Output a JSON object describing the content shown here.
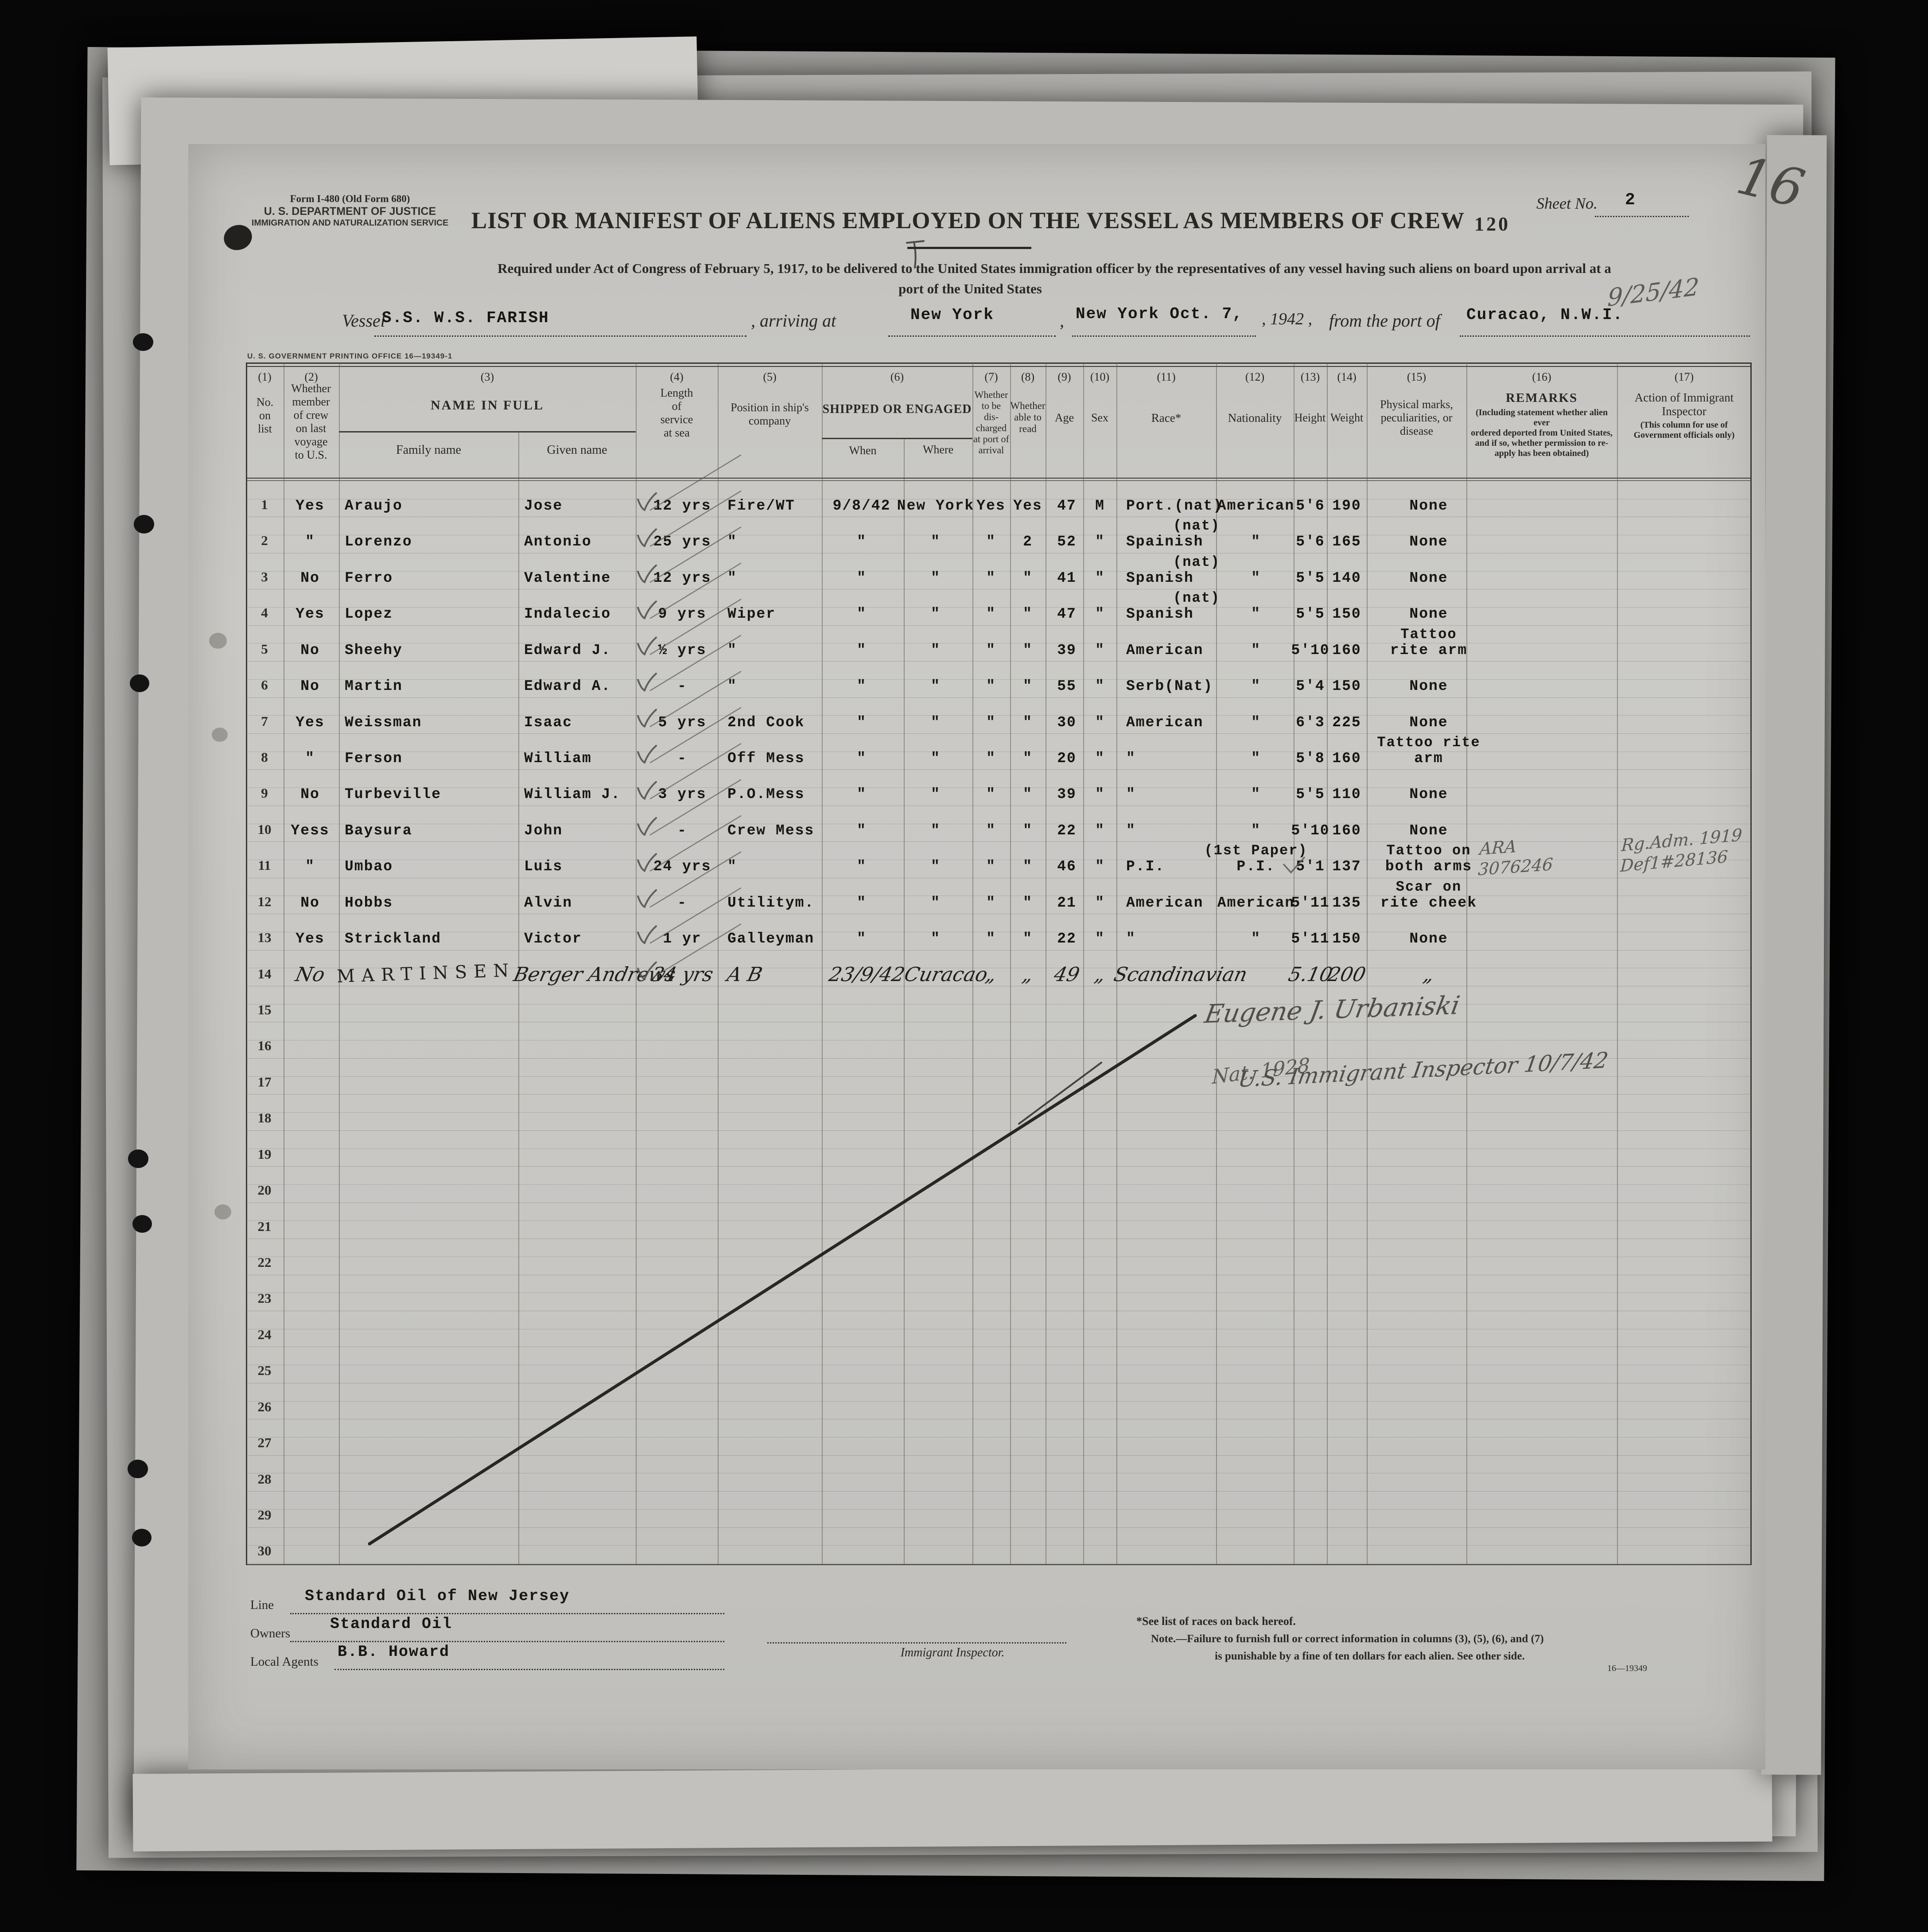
{
  "form": {
    "form_line1": "Form I-480 (Old Form 680)",
    "form_line2": "U. S. DEPARTMENT OF JUSTICE",
    "form_line3": "IMMIGRATION AND NATURALIZATION SERVICE",
    "title": "LIST OR MANIFEST OF ALIENS EMPLOYED ON THE VESSEL AS MEMBERS OF CREW",
    "stamp": "120",
    "sheet_label": "Sheet No.",
    "sheet_value": "2",
    "required_line1": "Required under Act of Congress of February 5, 1917, to be delivered to the United States immigration officer by the representatives of any vessel having such aliens on board upon arrival at a",
    "required_line2": "port of the United States",
    "printing_office": "U. S. GOVERNMENT PRINTING OFFICE   16—19349-1"
  },
  "vessel": {
    "vessel_label": "Vessel",
    "vessel_name": "S.S. W.S. FARISH",
    "arriving_label": ", arriving at",
    "arrival_port": "New York",
    "comma": ",",
    "arrival_city_date": "New York Oct. 7,",
    "year_text": ", 1942 ,",
    "from_label": "from the port of",
    "origin_port": "Curacao, N.W.I."
  },
  "table": {
    "header": {
      "n1": "(1)",
      "c1": "No.\non\nlist",
      "n2": "(2)",
      "c2": "Whether\nmember\nof crew\non last\nvoyage\nto U.S.",
      "n3": "(3)",
      "c3": "NAME IN FULL",
      "c3a": "Family name",
      "c3b": "Given name",
      "n4": "(4)",
      "c4": "Length\nof\nservice\nat sea",
      "n5": "(5)",
      "c5": "Position in ship's\ncompany",
      "n6": "(6)",
      "c6": "SHIPPED OR ENGAGED",
      "c6a": "When",
      "c6b": "Where",
      "n7": "(7)",
      "c7": "Whether\nto be\ndis-\ncharged\nat port of\narrival",
      "n8": "(8)",
      "c8": "Whether\nable to\nread",
      "n9": "(9)",
      "c9": "Age",
      "n10": "(10)",
      "c10": "Sex",
      "n11": "(11)",
      "c11": "Race*",
      "n12": "(12)",
      "c12": "Nationality",
      "n13": "(13)",
      "c13": "Height",
      "n14": "(14)",
      "c14": "Weight",
      "n15": "(15)",
      "c15": "Physical marks,\npeculiarities, or\ndisease",
      "n16": "(16)",
      "c16": "REMARKS",
      "c16sub": "(Including statement whether alien ever\nordered deported from United States,\nand if so, whether permission to re-\napply has been obtained)",
      "n17": "(17)",
      "c17": "Action of Immigrant\nInspector",
      "c17sub": "(This column for use of\nGovernment officials only)"
    },
    "rows": [
      {
        "no": "1",
        "member": "Yes",
        "family": "Araujo",
        "given": "Jose",
        "service": "12 yrs",
        "position": "Fire/WT",
        "when": "9/8/42",
        "where": "New York",
        "disch": "Yes",
        "read": "Yes",
        "age": "47",
        "sex": "M",
        "race": "Port.(nat)",
        "nat": "American",
        "height": "5'6",
        "weight": "190",
        "marks": "None"
      },
      {
        "no": "2",
        "member": "\"",
        "family": "Lorenzo",
        "given": "Antonio",
        "service": "25 yrs",
        "position": "\"",
        "when": "\"",
        "where": "\"",
        "disch": "\"",
        "read": "2",
        "age": "52",
        "sex": "\"",
        "race_pre": "(nat)",
        "race": "Spainish",
        "nat": "\"",
        "height": "5'6",
        "weight": "165",
        "marks": "None"
      },
      {
        "no": "3",
        "member": "No",
        "family": "Ferro",
        "given": "Valentine",
        "service": "12 yrs",
        "position": "\"",
        "when": "\"",
        "where": "\"",
        "disch": "\"",
        "read": "\"",
        "age": "41",
        "sex": "\"",
        "race_pre": "(nat)",
        "race": "Spanish",
        "nat": "\"",
        "height": "5'5",
        "weight": "140",
        "marks": "None"
      },
      {
        "no": "4",
        "member": "Yes",
        "family": "Lopez",
        "given": "Indalecio",
        "service": "9 yrs",
        "position": "Wiper",
        "when": "\"",
        "where": "\"",
        "disch": "\"",
        "read": "\"",
        "age": "47",
        "sex": "\"",
        "race_pre": "(nat)",
        "race": "Spanish",
        "nat": "\"",
        "height": "5'5",
        "weight": "150",
        "marks": "None"
      },
      {
        "no": "5",
        "member": "No",
        "family": "Sheehy",
        "given": "Edward J.",
        "service": "½ yrs",
        "position": "\"",
        "when": "\"",
        "where": "\"",
        "disch": "\"",
        "read": "\"",
        "age": "39",
        "sex": "\"",
        "race": "American",
        "nat": "\"",
        "height": "5'10",
        "weight": "160",
        "marks_pre": "Tattoo",
        "marks": "rite arm"
      },
      {
        "no": "6",
        "member": "No",
        "family": "Martin",
        "given": "Edward A.",
        "service": "-",
        "position": "\"",
        "when": "\"",
        "where": "\"",
        "disch": "\"",
        "read": "\"",
        "age": "55",
        "sex": "\"",
        "race": "Serb(Nat)",
        "nat": "\"",
        "height": "5'4",
        "weight": "150",
        "marks": "None"
      },
      {
        "no": "7",
        "member": "Yes",
        "family": "Weissman",
        "given": "Isaac",
        "service": "5 yrs",
        "position": "2nd Cook",
        "when": "\"",
        "where": "\"",
        "disch": "\"",
        "read": "\"",
        "age": "30",
        "sex": "\"",
        "race": "American",
        "nat": "\"",
        "height": "6'3",
        "weight": "225",
        "marks": "None"
      },
      {
        "no": "8",
        "member": "\"",
        "family": "Ferson",
        "given": "William",
        "service": "-",
        "position": "Off Mess",
        "when": "\"",
        "where": "\"",
        "disch": "\"",
        "read": "\"",
        "age": "20",
        "sex": "\"",
        "race": "\"",
        "nat": "\"",
        "height": "5'8",
        "weight": "160",
        "marks_pre": "Tattoo rite",
        "marks": "arm"
      },
      {
        "no": "9",
        "member": "No",
        "family": "Turbeville",
        "given": "William J.",
        "service": "3 yrs",
        "position": "P.O.Mess",
        "when": "\"",
        "where": "\"",
        "disch": "\"",
        "read": "\"",
        "age": "39",
        "sex": "\"",
        "race": "\"",
        "nat": "\"",
        "height": "5'5",
        "weight": "110",
        "marks": "None"
      },
      {
        "no": "10",
        "member": "Yess",
        "family": "Baysura",
        "given": "John",
        "service": "-",
        "position": "Crew Mess",
        "when": "\"",
        "where": "\"",
        "disch": "\"",
        "read": "\"",
        "age": "22",
        "sex": "\"",
        "race": "\"",
        "nat": "\"",
        "height": "5'10",
        "weight": "160",
        "marks": "None"
      },
      {
        "no": "11",
        "member": "\"",
        "family": "Umbao",
        "given": "Luis",
        "service": "24 yrs",
        "position": "\"",
        "when": "\"",
        "where": "\"",
        "disch": "\"",
        "read": "\"",
        "age": "46",
        "sex": "\"",
        "race": "P.I.",
        "nat_pre": "(1st Paper)",
        "nat": "P.I.",
        "height": "5'1",
        "weight": "137",
        "marks_pre": "Tattoo on",
        "marks": "both arms",
        "remarks": "ARA\n3076246",
        "action": "Rg.Adm. 1919\nDef1#28136"
      },
      {
        "no": "12",
        "member": "No",
        "family": "Hobbs",
        "given": "Alvin",
        "service": "-",
        "position": "Utilitym.",
        "when": "\"",
        "where": "\"",
        "disch": "\"",
        "read": "\"",
        "age": "21",
        "sex": "\"",
        "race": "American",
        "nat": "American",
        "height": "5'11",
        "weight": "135",
        "marks_pre": "Scar on",
        "marks": "rite cheek"
      },
      {
        "no": "13",
        "member": "Yes",
        "family": "Strickland",
        "given": "Victor",
        "service": "1 yr",
        "position": "Galleyman",
        "when": "\"",
        "where": "\"",
        "disch": "\"",
        "read": "\"",
        "age": "22",
        "sex": "\"",
        "race": "\"",
        "nat": "\"",
        "height": "5'11",
        "weight": "150",
        "marks": "None"
      },
      {
        "no": "14",
        "hand": true,
        "member": "No",
        "family": "MARTINSEN",
        "given": "Berger Andrews",
        "service": "34 yrs",
        "position": "A B",
        "when": "23/9/42",
        "where": "Curacao",
        "disch": "„",
        "read": "„",
        "age": "49",
        "sex": "„",
        "race": "Scandinavian",
        "height": "5.10",
        "weight": "200",
        "marks": "„"
      },
      {
        "no": "15"
      },
      {
        "no": "16"
      },
      {
        "no": "17"
      },
      {
        "no": "18"
      },
      {
        "no": "19"
      },
      {
        "no": "20"
      },
      {
        "no": "21"
      },
      {
        "no": "22"
      },
      {
        "no": "23"
      },
      {
        "no": "24"
      },
      {
        "no": "25"
      },
      {
        "no": "26"
      },
      {
        "no": "27"
      },
      {
        "no": "28"
      },
      {
        "no": "29"
      },
      {
        "no": "30"
      }
    ]
  },
  "annotations": {
    "page_pencil": "16",
    "arrival_pencil": "9/25/42",
    "nat_1928": "Nat. 1928",
    "inspector_sig": "Eugene  J.  Urbaniski",
    "inspector_title": "U.S.  Immigrant  Inspector  10/7/42"
  },
  "footer": {
    "line_label": "Line",
    "line_value": "Standard Oil of New Jersey",
    "owners_label": "Owners",
    "owners_value": "Standard Oil",
    "agents_label": "Local Agents",
    "agents_value": "B.B. Howard",
    "inspector_line_label": "Immigrant Inspector.",
    "note_races": "*See list of races on back hereof.",
    "note_line1": "Note.—Failure to furnish full or correct information in columns (3), (5), (6), and (7)",
    "note_line2": "is punishable by a fine of ten dollars for each alien.   See other side.",
    "print_code": "16—19349"
  }
}
